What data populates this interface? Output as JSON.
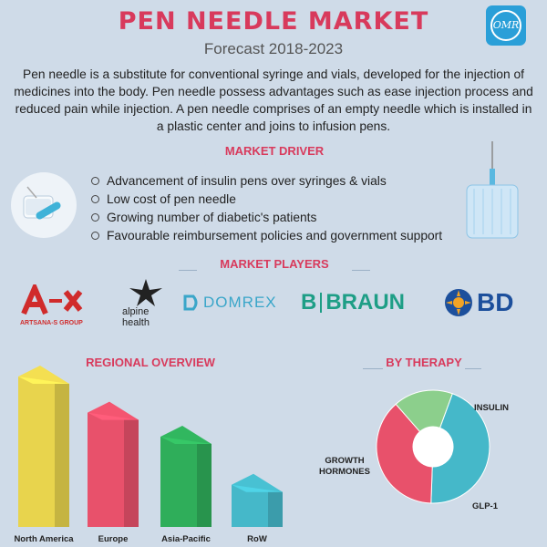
{
  "title": "PEN NEEDLE MARKET",
  "subtitle": "Forecast 2018-2023",
  "logo_text": "OMR",
  "intro": "Pen needle is a substitute for conventional syringe and vials, developed for the injection of medicines into the body. Pen needle possess advantages such as ease injection process and reduced pain while injection.  A pen needle comprises of an empty needle which is installed in a plastic center and joins to infusion pens.",
  "market_driver": {
    "heading": "MARKET DRIVER",
    "items": [
      "Advancement of insulin pens over syringes & vials",
      "Low cost of pen needle",
      "Growing number of diabetic's patients",
      "Favourable reimbursement policies and government support"
    ]
  },
  "market_players": {
    "heading": "MARKET PLAYERS",
    "artsana_sub": "ARTSANA-S GROUP",
    "alpine_line1": "alpine",
    "alpine_line2": "health",
    "domrex": "DOMREX",
    "braun_b": "B",
    "braun": "BRAUN",
    "bd": "BD"
  },
  "regional": {
    "heading": "REGIONAL OVERVIEW",
    "bars": [
      {
        "label": "North America",
        "value": 100,
        "color": "#e8d44d"
      },
      {
        "label": "Europe",
        "value": 76,
        "color": "#e8516b"
      },
      {
        "label": "Asia-Pacific",
        "value": 60,
        "color": "#2fae5a"
      },
      {
        "label": "RoW",
        "value": 28,
        "color": "#45b8c9"
      }
    ]
  },
  "therapy": {
    "heading": "BY THERAPY",
    "slices": [
      {
        "label": "INSULIN",
        "value": 45,
        "color": "#45b8c9"
      },
      {
        "label": "GLP-1",
        "value": 38,
        "color": "#e8516b"
      },
      {
        "label_line1": "GROWTH",
        "label_line2": "HORMONES",
        "value": 17,
        "color": "#8ccf8c"
      }
    ]
  }
}
